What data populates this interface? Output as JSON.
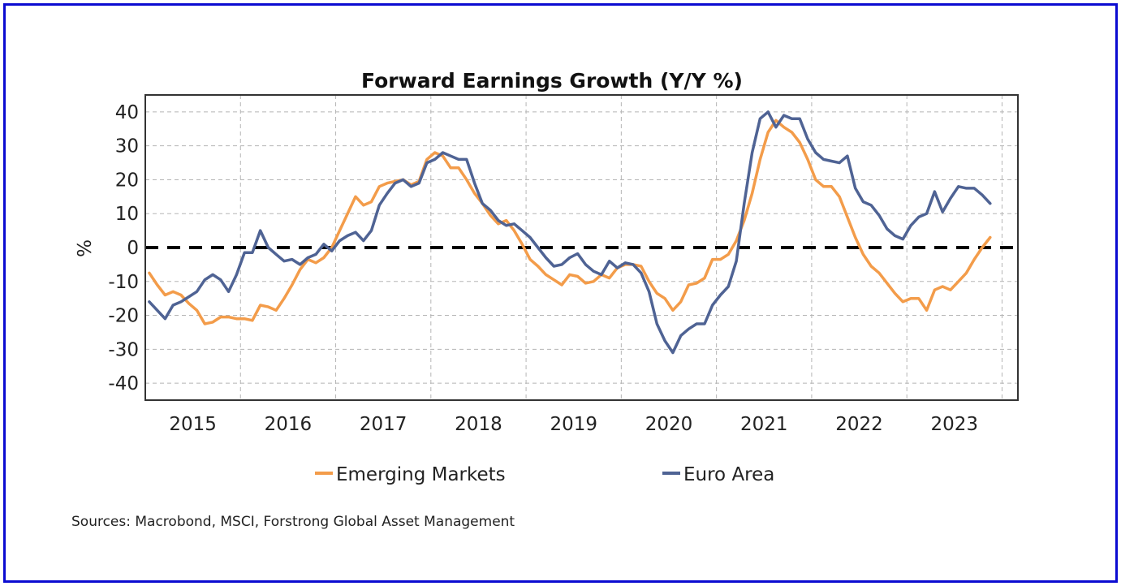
{
  "chart_data": {
    "type": "line",
    "title": "Forward Earnings Growth (Y/Y %)",
    "xlabel": "",
    "ylabel": "%",
    "ylim": [
      -45,
      45
    ],
    "xlim": [
      "2015-01",
      "2024-03"
    ],
    "yticks": [
      40,
      30,
      20,
      10,
      0,
      -10,
      -20,
      -30,
      -40
    ],
    "xticks": [
      "2015",
      "2016",
      "2017",
      "2018",
      "2019",
      "2020",
      "2021",
      "2022",
      "2023"
    ],
    "grid": true,
    "reference_line": {
      "y": 0,
      "style": "dashed",
      "color": "#000000"
    },
    "legend": {
      "placement": "bottom"
    },
    "x_start": "2015-01",
    "frequency": "monthly",
    "series": [
      {
        "name": "Emerging Markets",
        "color": "#f39c4a",
        "values": [
          -7.5,
          -11,
          -14,
          -13,
          -14,
          -16.5,
          -18.5,
          -22.5,
          -22,
          -20.5,
          -20.5,
          -21,
          -21,
          -21.5,
          -17,
          -17.5,
          -18.5,
          -15,
          -11,
          -6.5,
          -3.5,
          -4.5,
          -3,
          0,
          5,
          10,
          15,
          12.5,
          13.5,
          18,
          19,
          19.5,
          20,
          18.5,
          19.5,
          26,
          28,
          27,
          23.5,
          23.5,
          20,
          16,
          13,
          9.5,
          7,
          8,
          5,
          1,
          -3.5,
          -5.5,
          -8,
          -9.5,
          -11,
          -8,
          -8.5,
          -10.5,
          -10,
          -8,
          -9,
          -6,
          -5,
          -5,
          -5.5,
          -10,
          -13.5,
          -15,
          -18.5,
          -16,
          -11,
          -10.5,
          -9,
          -3.5,
          -3.5,
          -2,
          2,
          8,
          16,
          26,
          34,
          37.5,
          35.5,
          34,
          31,
          26,
          20,
          18,
          18,
          15,
          9,
          3,
          -2,
          -5.5,
          -7.5,
          -10.5,
          -13.5,
          -16,
          -15,
          -15,
          -18.5,
          -12.5,
          -11.5,
          -12.5,
          -10,
          -7.5,
          -3.5,
          0,
          3
        ]
      },
      {
        "name": "Euro Area",
        "color": "#4f6394",
        "values": [
          -16,
          -18.5,
          -21,
          -17,
          -16,
          -14.5,
          -13,
          -9.5,
          -8,
          -9.5,
          -13,
          -8,
          -1.5,
          -1.5,
          5,
          0,
          -2,
          -4,
          -3.5,
          -5,
          -3,
          -2,
          1,
          -1,
          2,
          3.5,
          4.5,
          2,
          5,
          12.5,
          16,
          19,
          20,
          18,
          19,
          25,
          26,
          28,
          27,
          26,
          26,
          19,
          13,
          11,
          8,
          6.5,
          7,
          5,
          3,
          0,
          -3,
          -5.5,
          -5,
          -3,
          -1.8,
          -5,
          -7,
          -8,
          -4,
          -6,
          -4.5,
          -5,
          -7.5,
          -13,
          -22.5,
          -27.5,
          -31,
          -26,
          -24,
          -22.5,
          -22.5,
          -17,
          -14,
          -11.5,
          -4,
          13,
          28,
          38,
          40,
          35.5,
          39,
          38,
          38,
          32,
          28,
          26,
          25.5,
          25,
          27,
          17.5,
          13.5,
          12.5,
          9.5,
          5.5,
          3.5,
          2.5,
          6.5,
          9,
          10,
          16.5,
          10.5,
          14.5,
          18,
          17.5,
          17.5,
          15.5,
          13
        ]
      }
    ],
    "source": "Sources: Macrobond, MSCI, Forstrong Global Asset Management"
  }
}
